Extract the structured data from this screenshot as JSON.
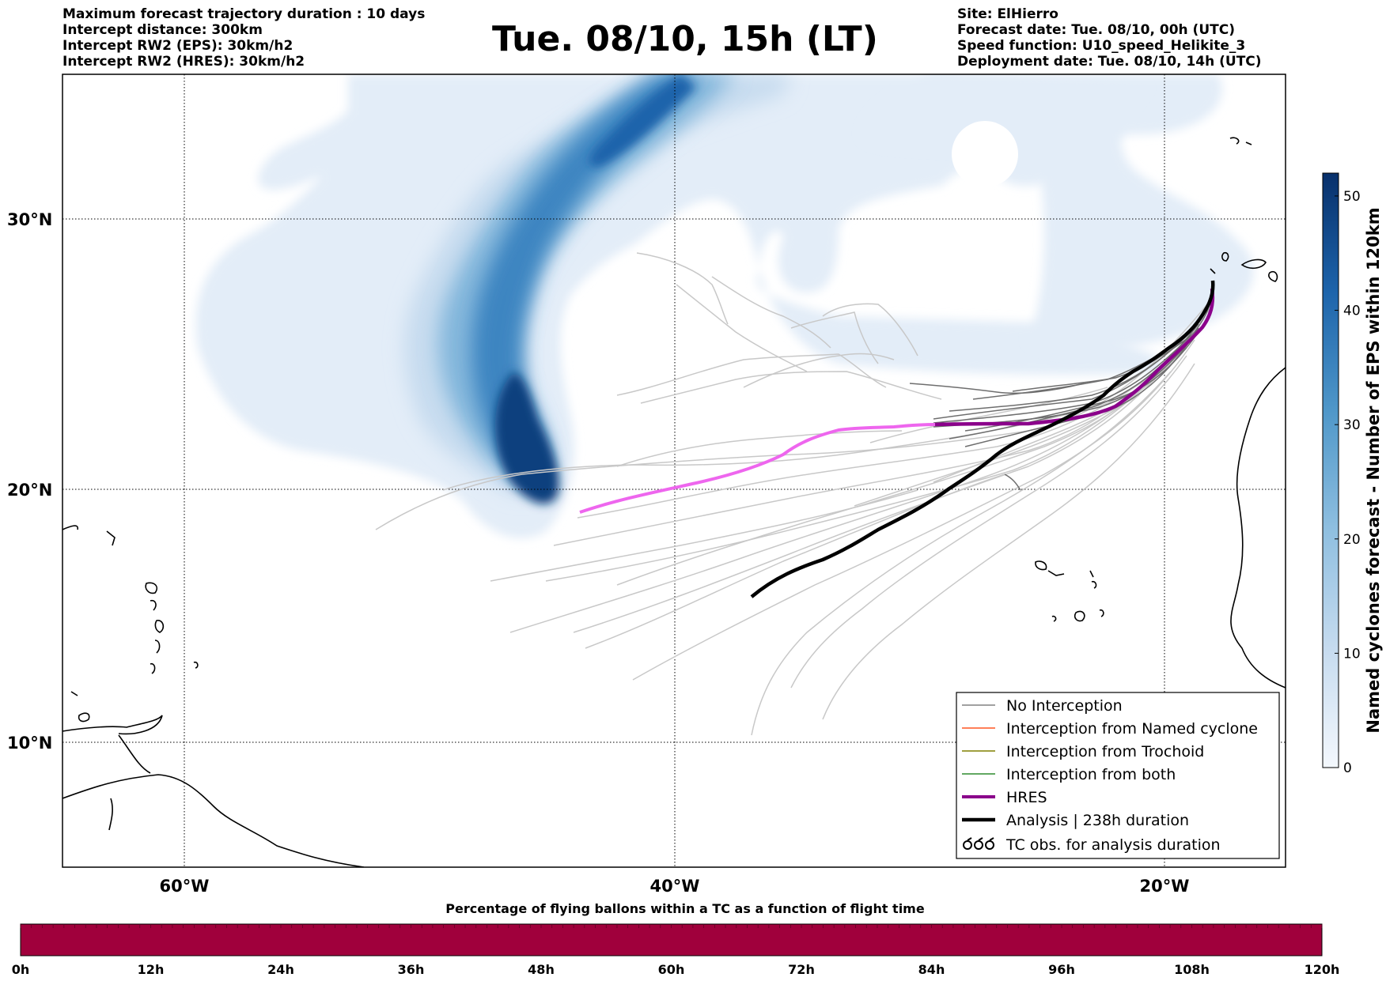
{
  "header_left": [
    "Maximum forecast trajectory duration : 10 days",
    "Intercept distance: 300km",
    "Intercept RW2 (EPS):  30km/h2",
    "Intercept RW2 (HRES): 30km/h2"
  ],
  "header_right": [
    "Site: ElHierro",
    "Forecast date: Tue. 08/10, 00h (UTC)",
    "Speed function: U10_speed_Helikite_3",
    "Deployment date: Tue. 08/10, 14h (UTC)"
  ],
  "title": "Tue. 08/10, 15h (LT)",
  "map": {
    "lon_ticks": [
      "60°W",
      "40°W",
      "20°W"
    ],
    "lat_ticks": [
      "30°N",
      "20°N",
      "10°N"
    ],
    "lon_range": [
      -65,
      -15
    ],
    "lat_range": [
      5.5,
      35
    ],
    "grid": true
  },
  "colorbar": {
    "label": "Named cyclones forecast - Number of EPS within 120km",
    "ticks": [
      "0",
      "10",
      "20",
      "30",
      "40",
      "50"
    ],
    "range": [
      0,
      52
    ],
    "colormap": "Blues"
  },
  "legend": {
    "entries": [
      {
        "label": "No Interception",
        "color": "#808080"
      },
      {
        "label": "Interception from Named cyclone",
        "color": "#ff5722"
      },
      {
        "label": "Interception from Trochoid",
        "color": "#808000"
      },
      {
        "label": "Interception from both",
        "color": "#2e8b2e"
      },
      {
        "label": "HRES",
        "color": "#8b008b"
      },
      {
        "label": "Analysis | 238h duration",
        "color": "#000000"
      },
      {
        "label": "TC obs. for analysis duration",
        "color": "#000000"
      }
    ]
  },
  "bottom_bar": {
    "title": "Percentage of flying ballons within a TC as a function of flight time",
    "ticks": [
      "0h",
      "12h",
      "24h",
      "36h",
      "48h",
      "60h",
      "72h",
      "84h",
      "96h",
      "108h",
      "120h"
    ],
    "color": "#a0003c"
  },
  "colors": {
    "hres_forecast": "#ee66ee",
    "hres_observed": "#8b008b",
    "ensemble_light": "#c8c8c8",
    "ensemble_dark": "#6e6e6e",
    "analysis": "#000000"
  }
}
